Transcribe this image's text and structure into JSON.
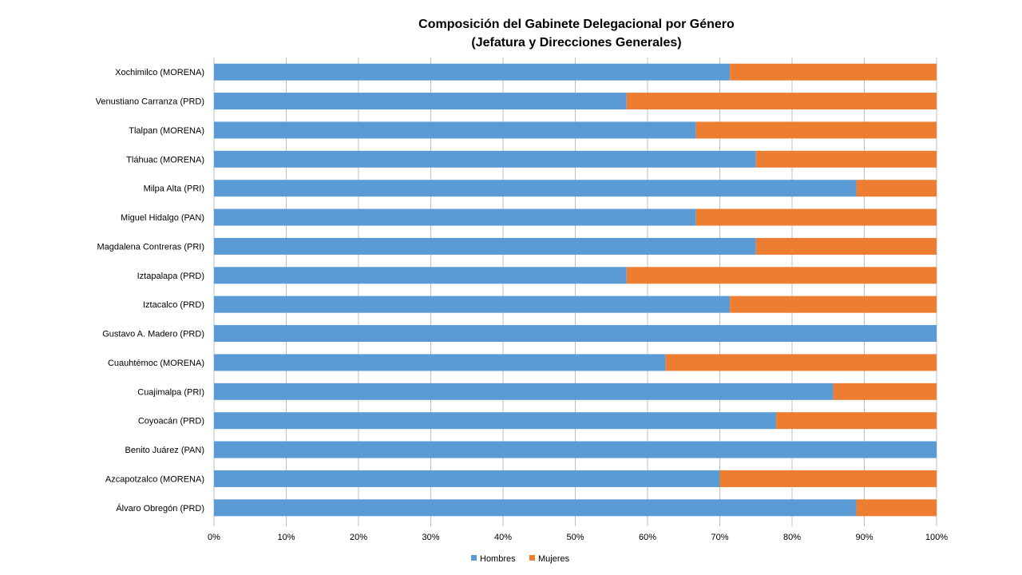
{
  "chart_data": {
    "type": "bar",
    "orientation": "horizontal",
    "stacked": "percent",
    "title": "Composición del Gabinete Delegacional por Género",
    "subtitle": "(Jefatura y Direcciones Generales)",
    "categories": [
      "Xochimilco (MORENA)",
      "Venustiano Carranza (PRD)",
      "Tlalpan (MORENA)",
      "Tláhuac (MORENA)",
      "Milpa Alta (PRI)",
      "Miguel Hidalgo (PAN)",
      "Magdalena Contreras (PRI)",
      "Iztapalapa (PRD)",
      "Iztacalco (PRD)",
      "Gustavo A. Madero (PRD)",
      "Cuauhtémoc (MORENA)",
      "Cuajimalpa (PRI)",
      "Coyoacán (PRD)",
      "Benito Juárez (PAN)",
      "Azcapotzalco (MORENA)",
      "Álvaro Obregón (PRD)"
    ],
    "series": [
      {
        "name": "Hombres",
        "color": "#5B9BD5",
        "values": [
          71.4,
          57.1,
          66.7,
          75.0,
          88.9,
          66.7,
          75.0,
          57.1,
          71.4,
          100,
          62.5,
          85.7,
          77.8,
          100,
          70.0,
          88.9
        ]
      },
      {
        "name": "Mujeres",
        "color": "#ED7D31",
        "values": [
          28.6,
          42.9,
          33.3,
          25.0,
          11.1,
          33.3,
          25.0,
          42.9,
          28.6,
          0,
          37.5,
          14.3,
          22.2,
          0,
          30.0,
          11.1
        ]
      }
    ],
    "xlim": [
      0,
      100
    ],
    "x_ticks": [
      "0%",
      "10%",
      "20%",
      "30%",
      "40%",
      "50%",
      "60%",
      "70%",
      "80%",
      "90%",
      "100%"
    ],
    "grid": "vertical",
    "legend": "bottom-center"
  }
}
